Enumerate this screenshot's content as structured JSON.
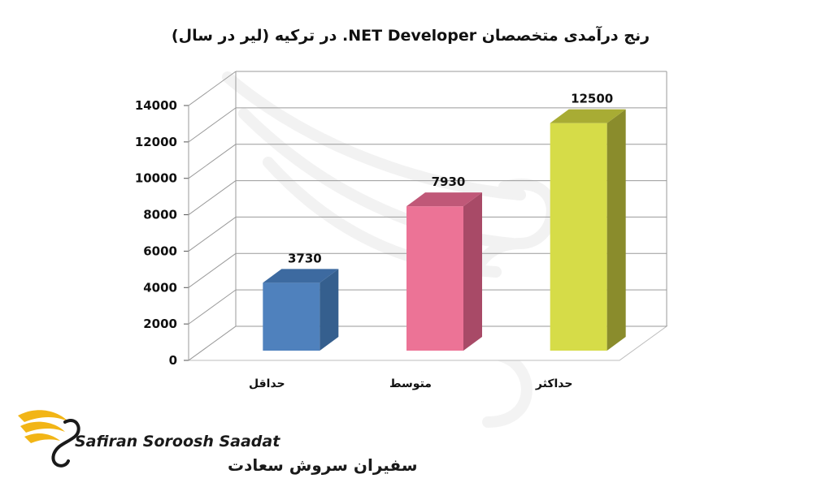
{
  "chart_data": {
    "type": "bar",
    "title": "رنج درآمدی متخصصان NET Developer. در ترکیه (لیر در سال)",
    "categories": [
      "حداقل",
      "متوسط",
      "حداکثر"
    ],
    "values": [
      3730,
      7930,
      12500
    ],
    "data_labels": [
      "3730",
      "7930",
      "12500"
    ],
    "yticks": [
      "0",
      "2000",
      "4000",
      "6000",
      "8000",
      "10000",
      "12000",
      "14000"
    ],
    "ylim": [
      0,
      14000
    ],
    "grid": true,
    "legend": "none",
    "three_d": true,
    "colors": [
      "#4f81bd",
      "#ec7396",
      "#d6dc48"
    ],
    "side_colors": [
      "#355f8e",
      "#a84a67",
      "#8a8c2c"
    ],
    "top_colors": [
      "#3d6aa0",
      "#c05878",
      "#a8ac34"
    ]
  },
  "logo": {
    "name_en": "Safiran Soroosh Saadat",
    "name_fa": "سفیران سروش سعادت",
    "colors": {
      "wing": "#f2b516",
      "text": "#1a1a1a"
    }
  }
}
